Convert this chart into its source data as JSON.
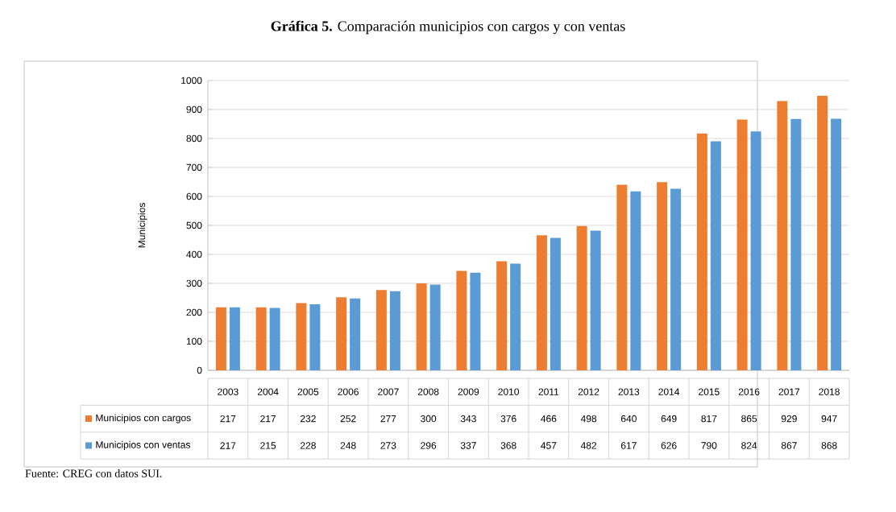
{
  "chart_data": {
    "type": "bar",
    "title": "**Gráfica 5.** Comparación municipios con cargos y con ventas",
    "ylabel": "Municipios",
    "categories": [
      "2003",
      "2004",
      "2005",
      "2006",
      "2007",
      "2008",
      "2009",
      "2010",
      "2011",
      "2012",
      "2013",
      "2014",
      "2015",
      "2016",
      "2017",
      "2018"
    ],
    "series": [
      {
        "name": "Municipios con cargos",
        "color": "#ed7d31",
        "values": [
          217,
          217,
          232,
          252,
          277,
          300,
          343,
          376,
          466,
          498,
          640,
          649,
          817,
          865,
          929,
          947
        ]
      },
      {
        "name": "Municipios con ventas",
        "color": "#5b9bd5",
        "values": [
          217,
          215,
          228,
          248,
          273,
          296,
          337,
          368,
          457,
          482,
          617,
          626,
          790,
          824,
          867,
          868
        ]
      }
    ],
    "ylim": [
      0,
      1000
    ],
    "yticks": [
      0,
      100,
      200,
      300,
      400,
      500,
      600,
      700,
      800,
      900,
      1000
    ],
    "grid": "y",
    "legend": "bottom",
    "data_labels": true,
    "annotations": [
      "Fuente: CREG con datos SUI."
    ]
  }
}
